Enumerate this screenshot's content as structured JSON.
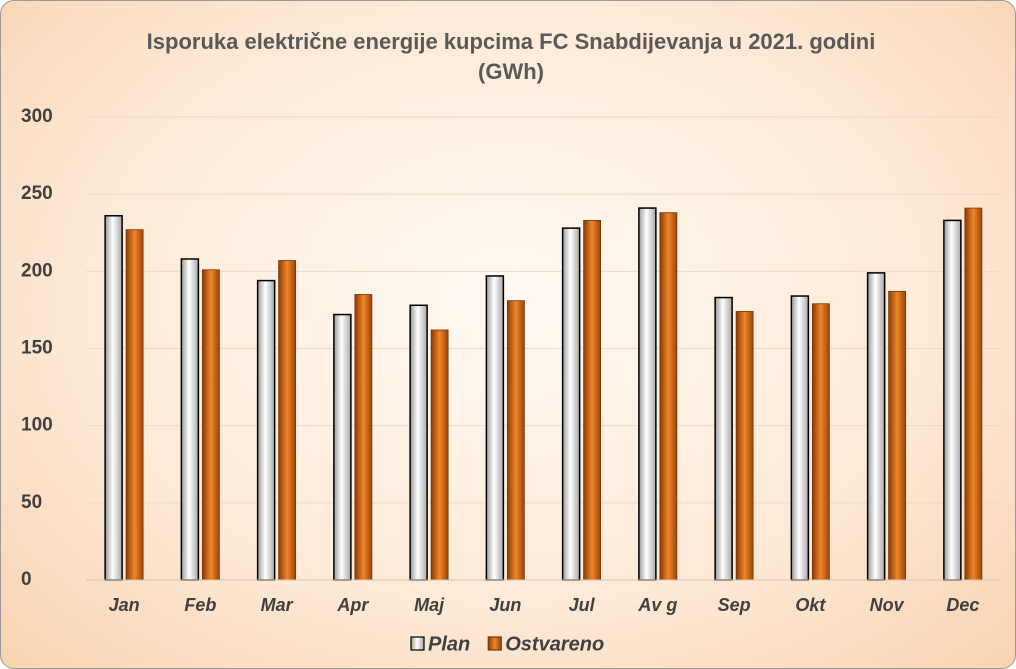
{
  "chart_data": {
    "type": "bar",
    "title": "Isporuka električne energije kupcima FC Snabdijevanja u 2021. godini (GWh)",
    "categories": [
      "Jan",
      "Feb",
      "Mar",
      "Apr",
      "Maj",
      "Jun",
      "Jul",
      "Av g",
      "Sep",
      "Okt",
      "Nov",
      "Dec"
    ],
    "series": [
      {
        "name": "Plan",
        "color": "#ffffff",
        "values": [
          236,
          208,
          194,
          172,
          178,
          197,
          228,
          241,
          183,
          184,
          199,
          233
        ]
      },
      {
        "name": "Ostvareno",
        "color": "#c8600f",
        "values": [
          227,
          201,
          207,
          185,
          162,
          181,
          233,
          238,
          174,
          179,
          187,
          241
        ]
      }
    ],
    "ylim": [
      0,
      300
    ],
    "yticks": [
      0,
      50,
      100,
      150,
      200,
      250,
      300
    ],
    "grid": true,
    "legend": "bottom"
  }
}
